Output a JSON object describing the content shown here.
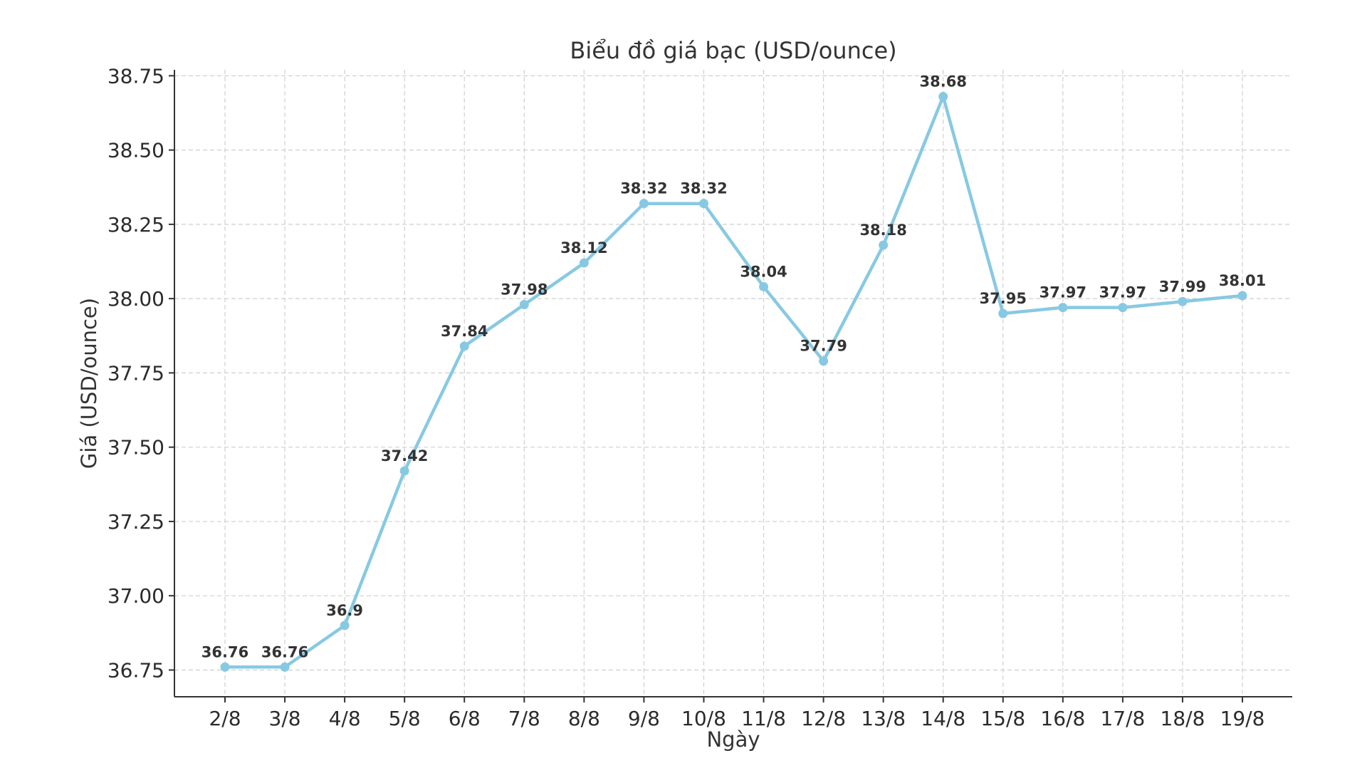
{
  "chart_data": {
    "type": "line",
    "title": "Biểu đồ giá bạc (USD/ounce)",
    "xlabel": "Ngày",
    "ylabel": "Giá (USD/ounce)",
    "categories": [
      "2/8",
      "3/8",
      "4/8",
      "5/8",
      "6/8",
      "7/8",
      "8/8",
      "9/8",
      "10/8",
      "11/8",
      "12/8",
      "13/8",
      "14/8",
      "15/8",
      "16/8",
      "17/8",
      "18/8",
      "19/8"
    ],
    "series": [
      {
        "values": [
          36.76,
          36.76,
          36.9,
          37.42,
          37.84,
          37.98,
          38.12,
          38.32,
          38.32,
          38.04,
          37.79,
          38.18,
          38.68,
          37.95,
          37.97,
          37.97,
          37.99,
          38.01
        ],
        "data_labels": [
          "36.76",
          "36.76",
          "36.9",
          "37.42",
          "37.84",
          "37.98",
          "38.12",
          "38.32",
          "38.32",
          "38.04",
          "37.79",
          "38.18",
          "38.68",
          "37.95",
          "37.97",
          "37.97",
          "37.99",
          "38.01"
        ],
        "color": "#87c9e3"
      }
    ],
    "yticks": [
      "36.75",
      "37.00",
      "37.25",
      "37.50",
      "37.75",
      "38.00",
      "38.25",
      "38.50",
      "38.75"
    ],
    "ylim": [
      36.66,
      38.77
    ],
    "grid": true,
    "legend": "none"
  }
}
